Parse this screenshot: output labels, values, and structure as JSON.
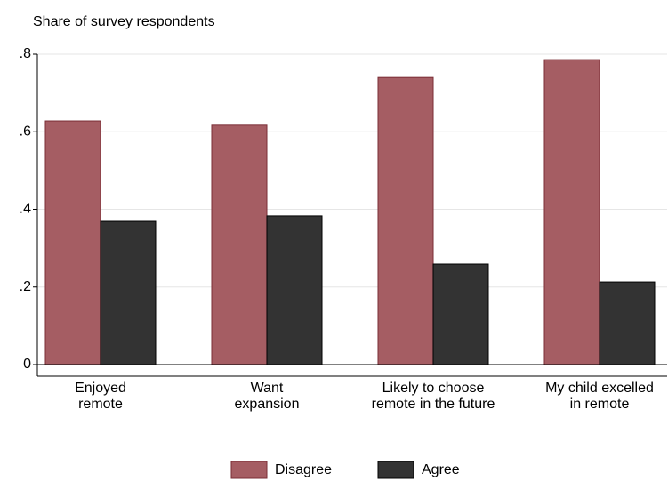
{
  "chart_data": {
    "type": "bar",
    "title": "Share of survey respondents",
    "categories": [
      [
        "Enjoyed",
        "remote"
      ],
      [
        "Want",
        "expansion"
      ],
      [
        "Likely to choose",
        "remote in the future"
      ],
      [
        "My child excelled",
        "in remote"
      ]
    ],
    "series": [
      {
        "name": "Disagree",
        "color": "#a55d63",
        "values": [
          0.628,
          0.617,
          0.74,
          0.786
        ]
      },
      {
        "name": "Agree",
        "color": "#333333",
        "values": [
          0.369,
          0.383,
          0.259,
          0.213
        ]
      }
    ],
    "ylim": [
      0,
      0.8
    ],
    "yticks": [
      0,
      {
        "value": 0.2,
        "label": ".2"
      },
      {
        "value": 0.4,
        "label": ".4"
      },
      {
        "value": 0.6,
        "label": ".6"
      },
      {
        "value": 0.8,
        "label": ".8"
      }
    ],
    "grid": true,
    "legend": "bottom"
  }
}
